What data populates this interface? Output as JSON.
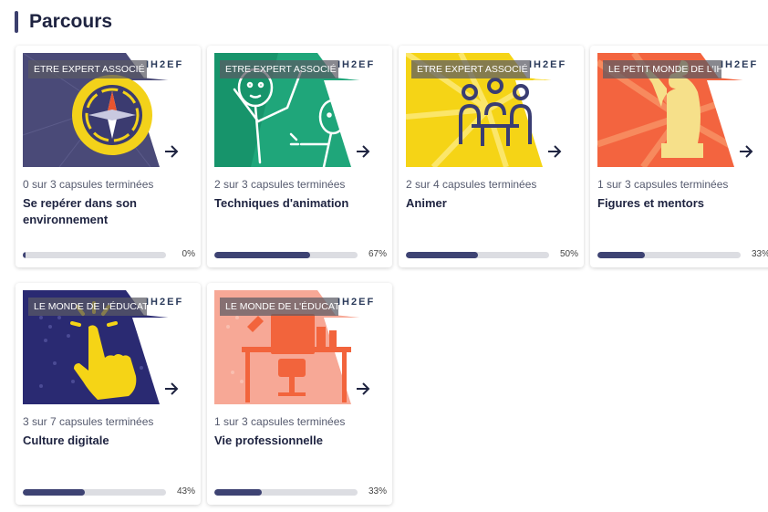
{
  "page": {
    "title": "Parcours"
  },
  "logo_text": "IH2EF",
  "colors": {
    "accent": "#3e4373",
    "track": "#dcdde2"
  },
  "cards": [
    {
      "badge": "ETRE EXPERT ASSOCIÉ",
      "count": "0 sur 3 capsules terminées",
      "title": "Se repérer dans son environnement",
      "progress": 0,
      "progress_label": "0%",
      "image": "compass-illustration"
    },
    {
      "badge": "ETRE EXPERT ASSOCIÉ",
      "count": "2 sur 3 capsules terminées",
      "title": "Techniques d'animation",
      "progress": 67,
      "progress_label": "67%",
      "image": "stick-figures-illustration"
    },
    {
      "badge": "ETRE EXPERT ASSOCIÉ",
      "count": "2 sur 4 capsules terminées",
      "title": "Animer",
      "progress": 50,
      "progress_label": "50%",
      "image": "meeting-table-icon"
    },
    {
      "badge": "LE PETIT MONDE DE L'IH2EF",
      "count": "1 sur 3 capsules terminées",
      "title": "Figures et mentors",
      "progress": 33,
      "progress_label": "33%",
      "image": "statue-silhouette"
    },
    {
      "badge": "LE MONDE DE L'ÉDUCATION",
      "count": "3 sur 7 capsules terminées",
      "title": "Culture digitale",
      "progress": 43,
      "progress_label": "43%",
      "image": "pointing-hand-illustration"
    },
    {
      "badge": "LE MONDE DE L'ÉDUCATION",
      "count": "1 sur 3 capsules terminées",
      "title": "Vie professionnelle",
      "progress": 33,
      "progress_label": "33%",
      "image": "desk-chair-illustration"
    }
  ]
}
